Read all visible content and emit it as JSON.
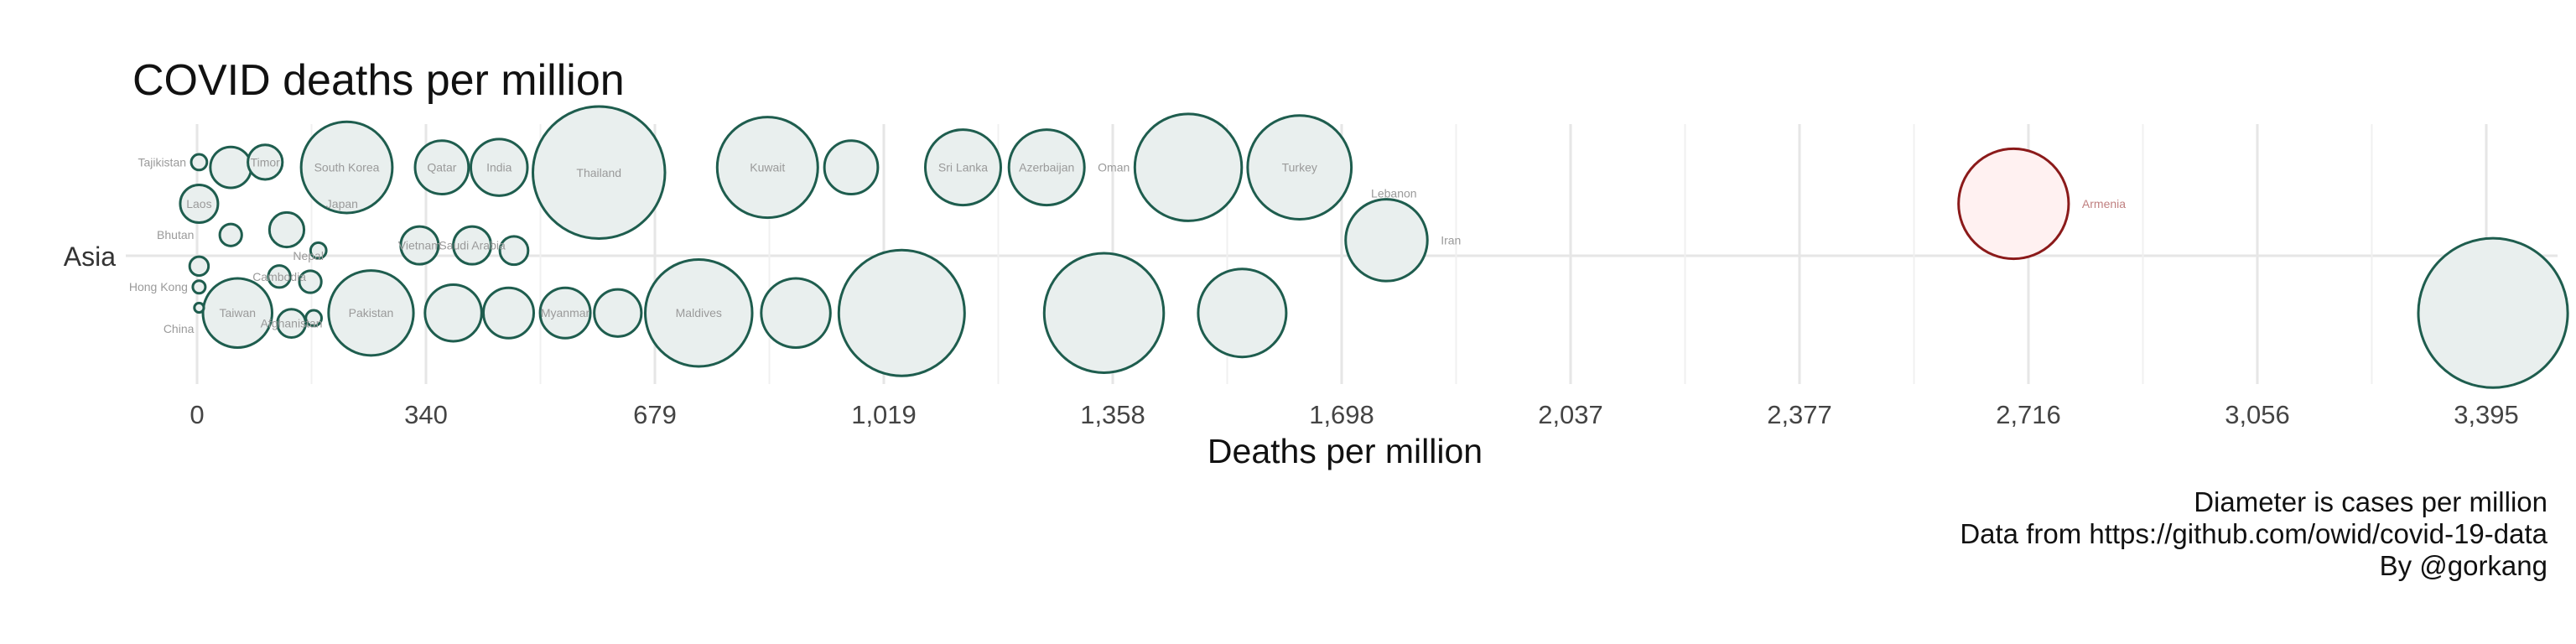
{
  "chart_data": {
    "type": "scatter",
    "title": "COVID deaths per million",
    "xlabel": "Deaths per million",
    "ylabel": "",
    "category_label": "Asia",
    "x_ticks": [
      "0",
      "340",
      "679",
      "1,019",
      "1,358",
      "1,698",
      "2,037",
      "2,377",
      "2,716",
      "3,056",
      "3,395"
    ],
    "xlim": [
      0,
      3490
    ],
    "grid": true,
    "size_encoding": "Diameter is cases per million",
    "colors": {
      "default_fill": "#e9efee",
      "default_stroke": "#1e5d4e",
      "highlight_fill": "#fff1f1",
      "highlight_stroke": "#8b1a1a",
      "label": "#9a9a9a",
      "highlight_label": "#c08080",
      "grid": "#e6e6e6"
    },
    "points": [
      {
        "x": 3,
        "lane": -0.36,
        "d": 10,
        "label": "Tajikistan",
        "lo": "l"
      },
      {
        "x": 50,
        "lane": -0.34,
        "d": 26,
        "label": ""
      },
      {
        "x": 101,
        "lane": -0.36,
        "d": 22,
        "label": "Timor",
        "lo": "c"
      },
      {
        "x": 222,
        "lane": -0.34,
        "d": 58,
        "label": "South Korea",
        "lo": "c"
      },
      {
        "x": 363,
        "lane": -0.34,
        "d": 34,
        "label": "Qatar",
        "lo": "c"
      },
      {
        "x": 448,
        "lane": -0.34,
        "d": 36,
        "label": "India",
        "lo": "c"
      },
      {
        "x": 596,
        "lane": -0.32,
        "d": 84,
        "label": "Thailand",
        "lo": "c"
      },
      {
        "x": 846,
        "lane": -0.34,
        "d": 64,
        "label": "Kuwait",
        "lo": "c"
      },
      {
        "x": 970,
        "lane": -0.34,
        "d": 34,
        "label": ""
      },
      {
        "x": 1136,
        "lane": -0.34,
        "d": 48,
        "label": "Sri Lanka",
        "lo": "c"
      },
      {
        "x": 1260,
        "lane": -0.34,
        "d": 48,
        "label": "Azerbaijan",
        "lo": "c"
      },
      {
        "x": 1470,
        "lane": -0.34,
        "d": 68,
        "label": "Oman",
        "lo": "l"
      },
      {
        "x": 1635,
        "lane": -0.34,
        "d": 66,
        "label": "Turkey",
        "lo": "c"
      },
      {
        "x": 2694,
        "lane": -0.2,
        "d": 70,
        "label": "Armenia",
        "lo": "r",
        "highlight": true
      },
      {
        "x": 3,
        "lane": -0.2,
        "d": 24,
        "label": "Laos",
        "lo": "c"
      },
      {
        "x": 50,
        "lane": -0.08,
        "d": 14,
        "label": ""
      },
      {
        "x": 133,
        "lane": -0.1,
        "d": 22,
        "label": ""
      },
      {
        "x": 180,
        "lane": -0.02,
        "d": 10,
        "label": ""
      },
      {
        "x": 215,
        "lane": -0.2,
        "d": 0,
        "label": "Japan",
        "lo": "c"
      },
      {
        "x": 1775,
        "lane": -0.24,
        "d": 0,
        "label": "Lebanon",
        "lo": "c"
      },
      {
        "x": 1764,
        "lane": -0.06,
        "d": 52,
        "label": "Iran",
        "lo": "r"
      },
      {
        "x": 3,
        "lane": -0.08,
        "d": 0,
        "label": "Bhutan",
        "lo": "l"
      },
      {
        "x": 3,
        "lane": 0.04,
        "d": 12,
        "label": ""
      },
      {
        "x": 3,
        "lane": 0.12,
        "d": 8,
        "label": "Hong Kong",
        "lo": "l"
      },
      {
        "x": 3,
        "lane": 0.2,
        "d": 6,
        "label": ""
      },
      {
        "x": 3,
        "lane": 0.28,
        "d": 0,
        "label": "China",
        "lo": "l"
      },
      {
        "x": 122,
        "lane": 0.08,
        "d": 14,
        "label": "Cambodia",
        "lo": "c"
      },
      {
        "x": 168,
        "lane": 0.1,
        "d": 14,
        "label": ""
      },
      {
        "x": 165,
        "lane": 0.0,
        "d": 0,
        "label": "Nepal",
        "lo": "c"
      },
      {
        "x": 173,
        "lane": 0.24,
        "d": 10,
        "label": ""
      },
      {
        "x": 140,
        "lane": 0.26,
        "d": 18,
        "label": "Afghanistan",
        "lo": "c"
      },
      {
        "x": 60,
        "lane": 0.22,
        "d": 44,
        "label": "Taiwan",
        "lo": "c"
      },
      {
        "x": 258,
        "lane": 0.22,
        "d": 54,
        "label": "Pakistan",
        "lo": "c"
      },
      {
        "x": 330,
        "lane": -0.04,
        "d": 24,
        "label": "Vietnam",
        "lo": "c"
      },
      {
        "x": 408,
        "lane": -0.04,
        "d": 24,
        "label": "Saudi Arabia",
        "lo": "c"
      },
      {
        "x": 470,
        "lane": -0.02,
        "d": 18,
        "label": ""
      },
      {
        "x": 380,
        "lane": 0.22,
        "d": 36,
        "label": ""
      },
      {
        "x": 462,
        "lane": 0.22,
        "d": 32,
        "label": ""
      },
      {
        "x": 546,
        "lane": 0.22,
        "d": 32,
        "label": "Myanmar",
        "lo": "c"
      },
      {
        "x": 624,
        "lane": 0.22,
        "d": 30,
        "label": ""
      },
      {
        "x": 744,
        "lane": 0.22,
        "d": 68,
        "label": "Maldives",
        "lo": "c"
      },
      {
        "x": 888,
        "lane": 0.22,
        "d": 44,
        "label": ""
      },
      {
        "x": 1045,
        "lane": 0.22,
        "d": 80,
        "label": ""
      },
      {
        "x": 1345,
        "lane": 0.22,
        "d": 76,
        "label": ""
      },
      {
        "x": 1550,
        "lane": 0.22,
        "d": 56,
        "label": ""
      },
      {
        "x": 3405,
        "lane": 0.22,
        "d": 95,
        "label": ""
      }
    ]
  },
  "caption": {
    "line1": "Diameter is cases per million",
    "line2": "Data from https://github.com/owid/covid-19-data",
    "line3": "By @gorkang"
  }
}
